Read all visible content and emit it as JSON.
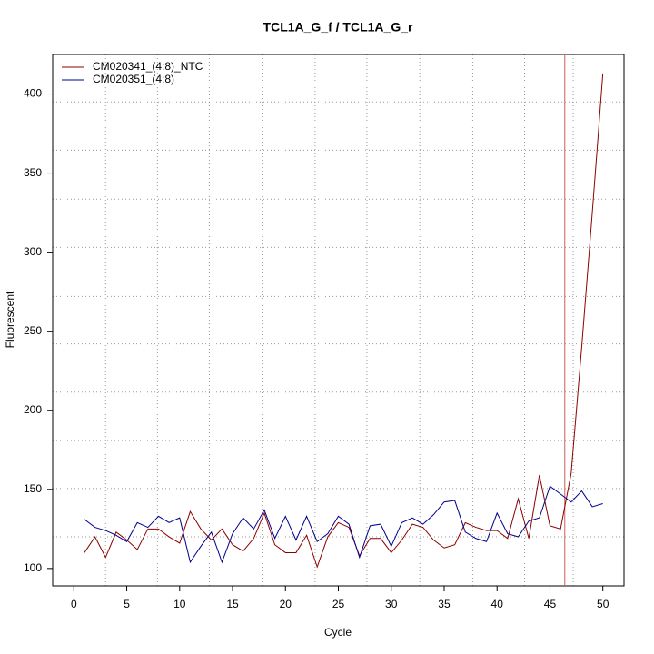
{
  "chart_data": {
    "type": "line",
    "title": "TCL1A_G_f / TCL1A_G_r",
    "x_label": "Cycle",
    "y_label": "Fluorescent",
    "x": [
      1,
      2,
      3,
      4,
      5,
      6,
      7,
      8,
      9,
      10,
      11,
      12,
      13,
      14,
      15,
      16,
      17,
      18,
      19,
      20,
      21,
      22,
      23,
      24,
      25,
      26,
      27,
      28,
      29,
      30,
      31,
      32,
      33,
      34,
      35,
      36,
      37,
      38,
      39,
      40,
      41,
      42,
      43,
      44,
      45,
      46,
      47,
      48,
      49,
      50
    ],
    "series": [
      {
        "name": "CM020341_(4:8)_NTC",
        "color": "#8b0000",
        "values": [
          110,
          120,
          107,
          123,
          118,
          112,
          125,
          125,
          120,
          116,
          136,
          125,
          118,
          125,
          115,
          111,
          119,
          135,
          115,
          110,
          110,
          121,
          101,
          120,
          129,
          126,
          108,
          119,
          119,
          110,
          118,
          128,
          126,
          118,
          113,
          115,
          129,
          126,
          124,
          124,
          119,
          144,
          119,
          159,
          127,
          125,
          160,
          240,
          325,
          413
        ]
      },
      {
        "name": "CM020351_(4:8)",
        "color": "#00008b",
        "values": [
          131,
          126,
          124,
          121,
          117,
          129,
          126,
          133,
          129,
          132,
          104,
          114,
          123,
          104,
          122,
          132,
          125,
          137,
          119,
          133,
          118,
          133,
          117,
          122,
          133,
          128,
          107,
          127,
          128,
          114,
          129,
          132,
          128,
          134,
          142,
          143,
          123,
          119,
          117,
          135,
          122,
          120,
          130,
          132,
          152,
          147,
          142,
          149,
          139,
          141
        ]
      }
    ],
    "xlim": [
      -2,
      52
    ],
    "ylim": [
      89,
      425
    ],
    "xticks": [
      0,
      5,
      10,
      15,
      20,
      25,
      30,
      35,
      40,
      45,
      50
    ],
    "yticks": [
      100,
      150,
      200,
      250,
      300,
      350,
      400
    ],
    "grid_x": [
      3,
      7.9,
      12.8,
      17.8,
      22.8,
      27.7,
      32.7,
      37.7,
      42.6,
      47.2
    ],
    "grid_y": [
      120,
      150.5,
      181,
      211.5,
      242,
      272,
      303,
      333.5,
      364.5,
      395
    ],
    "vline": {
      "value": 46.4,
      "color": "#cd5c5c"
    },
    "legend": "top-left"
  }
}
